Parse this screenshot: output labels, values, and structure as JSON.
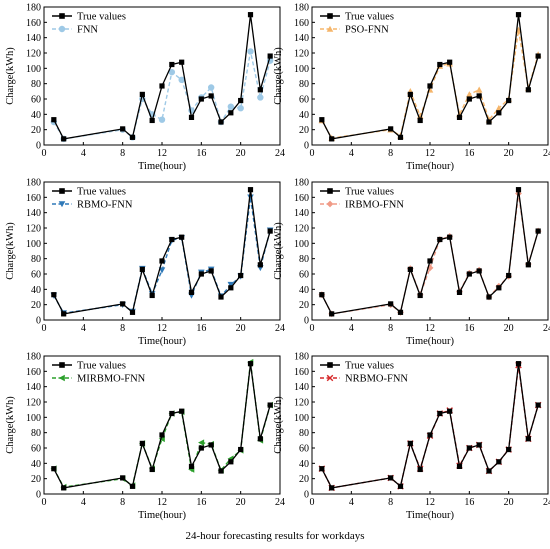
{
  "caption": "24-hour forecasting results for workdays",
  "chart_data": [
    {
      "type": "line",
      "xlabel": "Time(hour)",
      "ylabel": "Charge(kWh)",
      "xlim": [
        0,
        24
      ],
      "ylim": [
        0,
        180
      ],
      "xticks": [
        "0",
        "4",
        "8",
        "12",
        "16",
        "20",
        "24"
      ],
      "yticks": [
        "0",
        "20",
        "40",
        "60",
        "80",
        "100",
        "120",
        "140",
        "160",
        "180"
      ],
      "legend": "top-left",
      "x": [
        1,
        2,
        8,
        9,
        10,
        11,
        12,
        13,
        14,
        15,
        16,
        17,
        18,
        19,
        20,
        21,
        22,
        23
      ],
      "series": [
        {
          "name": "True values",
          "color": "#000000",
          "marker": "square",
          "values": [
            33,
            8,
            21,
            10,
            66,
            32,
            77,
            105,
            108,
            36,
            60,
            64,
            30,
            42,
            58,
            170,
            72,
            116
          ]
        },
        {
          "name": "FNN",
          "color": "#9ec9e6",
          "marker": "circle",
          "values": [
            30,
            8,
            20,
            10,
            60,
            40,
            33,
            95,
            85,
            45,
            62,
            75,
            30,
            50,
            48,
            122,
            62,
            110
          ]
        }
      ]
    },
    {
      "type": "line",
      "xlabel": "Time(hour)",
      "ylabel": "Charge(kWh)",
      "xlim": [
        0,
        24
      ],
      "ylim": [
        0,
        180
      ],
      "xticks": [
        "0",
        "4",
        "8",
        "12",
        "16",
        "20",
        "24"
      ],
      "yticks": [
        "0",
        "20",
        "40",
        "60",
        "80",
        "100",
        "120",
        "140",
        "160",
        "180"
      ],
      "legend": "top-left",
      "x": [
        1,
        2,
        8,
        9,
        10,
        11,
        12,
        13,
        14,
        15,
        16,
        17,
        18,
        19,
        20,
        21,
        22,
        23
      ],
      "series": [
        {
          "name": "True values",
          "color": "#000000",
          "marker": "square",
          "values": [
            33,
            8,
            21,
            10,
            66,
            32,
            77,
            105,
            108,
            36,
            60,
            64,
            30,
            42,
            58,
            170,
            72,
            116
          ]
        },
        {
          "name": "PSO-FNN",
          "color": "#f5b56a",
          "marker": "triangle-up",
          "values": [
            32,
            9,
            20,
            12,
            70,
            38,
            72,
            103,
            106,
            40,
            66,
            72,
            33,
            48,
            60,
            150,
            74,
            118
          ]
        }
      ]
    },
    {
      "type": "line",
      "xlabel": "Time(hour)",
      "ylabel": "Charge(kWh)",
      "xlim": [
        0,
        24
      ],
      "ylim": [
        0,
        180
      ],
      "xticks": [
        "0",
        "4",
        "8",
        "12",
        "16",
        "20",
        "24"
      ],
      "yticks": [
        "0",
        "20",
        "40",
        "60",
        "80",
        "100",
        "120",
        "140",
        "160",
        "180"
      ],
      "legend": "top-left",
      "x": [
        1,
        2,
        8,
        9,
        10,
        11,
        12,
        13,
        14,
        15,
        16,
        17,
        18,
        19,
        20,
        21,
        22,
        23
      ],
      "series": [
        {
          "name": "True values",
          "color": "#000000",
          "marker": "square",
          "values": [
            33,
            8,
            21,
            10,
            66,
            32,
            77,
            105,
            108,
            36,
            60,
            64,
            30,
            42,
            58,
            170,
            72,
            116
          ]
        },
        {
          "name": "RBMO-FNN",
          "color": "#2f79b8",
          "marker": "triangle-down",
          "values": [
            32,
            9,
            20,
            11,
            67,
            34,
            65,
            104,
            107,
            32,
            62,
            66,
            31,
            46,
            57,
            160,
            68,
            117
          ]
        }
      ]
    },
    {
      "type": "line",
      "xlabel": "Time(hour)",
      "ylabel": "Charge(kWh)",
      "xlim": [
        0,
        24
      ],
      "ylim": [
        0,
        180
      ],
      "xticks": [
        "0",
        "4",
        "8",
        "12",
        "16",
        "20",
        "24"
      ],
      "yticks": [
        "0",
        "20",
        "40",
        "60",
        "80",
        "100",
        "120",
        "140",
        "160",
        "180"
      ],
      "legend": "top-left",
      "x": [
        1,
        2,
        8,
        9,
        10,
        11,
        12,
        13,
        14,
        15,
        16,
        17,
        18,
        19,
        20,
        21,
        22,
        23
      ],
      "series": [
        {
          "name": "True values",
          "color": "#000000",
          "marker": "square",
          "values": [
            33,
            8,
            21,
            10,
            66,
            32,
            77,
            105,
            108,
            36,
            60,
            64,
            30,
            42,
            58,
            170,
            72,
            116
          ]
        },
        {
          "name": "IRBMO-FNN",
          "color": "#f09a86",
          "marker": "diamond",
          "values": [
            33,
            8,
            20,
            10,
            67,
            33,
            68,
            105,
            109,
            37,
            61,
            65,
            30,
            44,
            57,
            165,
            73,
            116
          ]
        }
      ]
    },
    {
      "type": "line",
      "xlabel": "Time(hour)",
      "ylabel": "Charge(kWh)",
      "xlim": [
        0,
        24
      ],
      "ylim": [
        0,
        180
      ],
      "xticks": [
        "0",
        "4",
        "8",
        "12",
        "16",
        "20",
        "24"
      ],
      "yticks": [
        "0",
        "20",
        "40",
        "60",
        "80",
        "100",
        "120",
        "140",
        "160",
        "180"
      ],
      "legend": "top-left",
      "x": [
        1,
        2,
        8,
        9,
        10,
        11,
        12,
        13,
        14,
        15,
        16,
        17,
        18,
        19,
        20,
        21,
        22,
        23
      ],
      "series": [
        {
          "name": "True values",
          "color": "#000000",
          "marker": "square",
          "values": [
            33,
            8,
            21,
            10,
            66,
            32,
            77,
            105,
            108,
            36,
            60,
            64,
            30,
            42,
            58,
            170,
            72,
            116
          ]
        },
        {
          "name": "MIRBMO-FNN",
          "color": "#2ca02c",
          "marker": "triangle-left",
          "values": [
            33,
            9,
            20,
            11,
            66,
            33,
            72,
            105,
            107,
            32,
            67,
            65,
            31,
            46,
            57,
            172,
            70,
            116
          ]
        }
      ]
    },
    {
      "type": "line",
      "xlabel": "Time(hour)",
      "ylabel": "Charge(kWh)",
      "xlim": [
        0,
        24
      ],
      "ylim": [
        0,
        180
      ],
      "xticks": [
        "0",
        "4",
        "8",
        "12",
        "16",
        "20",
        "24"
      ],
      "yticks": [
        "0",
        "20",
        "40",
        "60",
        "80",
        "100",
        "120",
        "140",
        "160",
        "180"
      ],
      "legend": "top-left",
      "x": [
        1,
        2,
        8,
        9,
        10,
        11,
        12,
        13,
        14,
        15,
        16,
        17,
        18,
        19,
        20,
        21,
        22,
        23
      ],
      "series": [
        {
          "name": "True values",
          "color": "#000000",
          "marker": "square",
          "values": [
            33,
            8,
            21,
            10,
            66,
            32,
            77,
            105,
            108,
            36,
            60,
            64,
            30,
            42,
            58,
            170,
            72,
            116
          ]
        },
        {
          "name": "NRBMO-FNN",
          "color": "#d62728",
          "marker": "x",
          "values": [
            33,
            8,
            21,
            10,
            66,
            33,
            76,
            105,
            109,
            37,
            60,
            64,
            30,
            42,
            58,
            168,
            72,
            116
          ]
        }
      ]
    }
  ]
}
